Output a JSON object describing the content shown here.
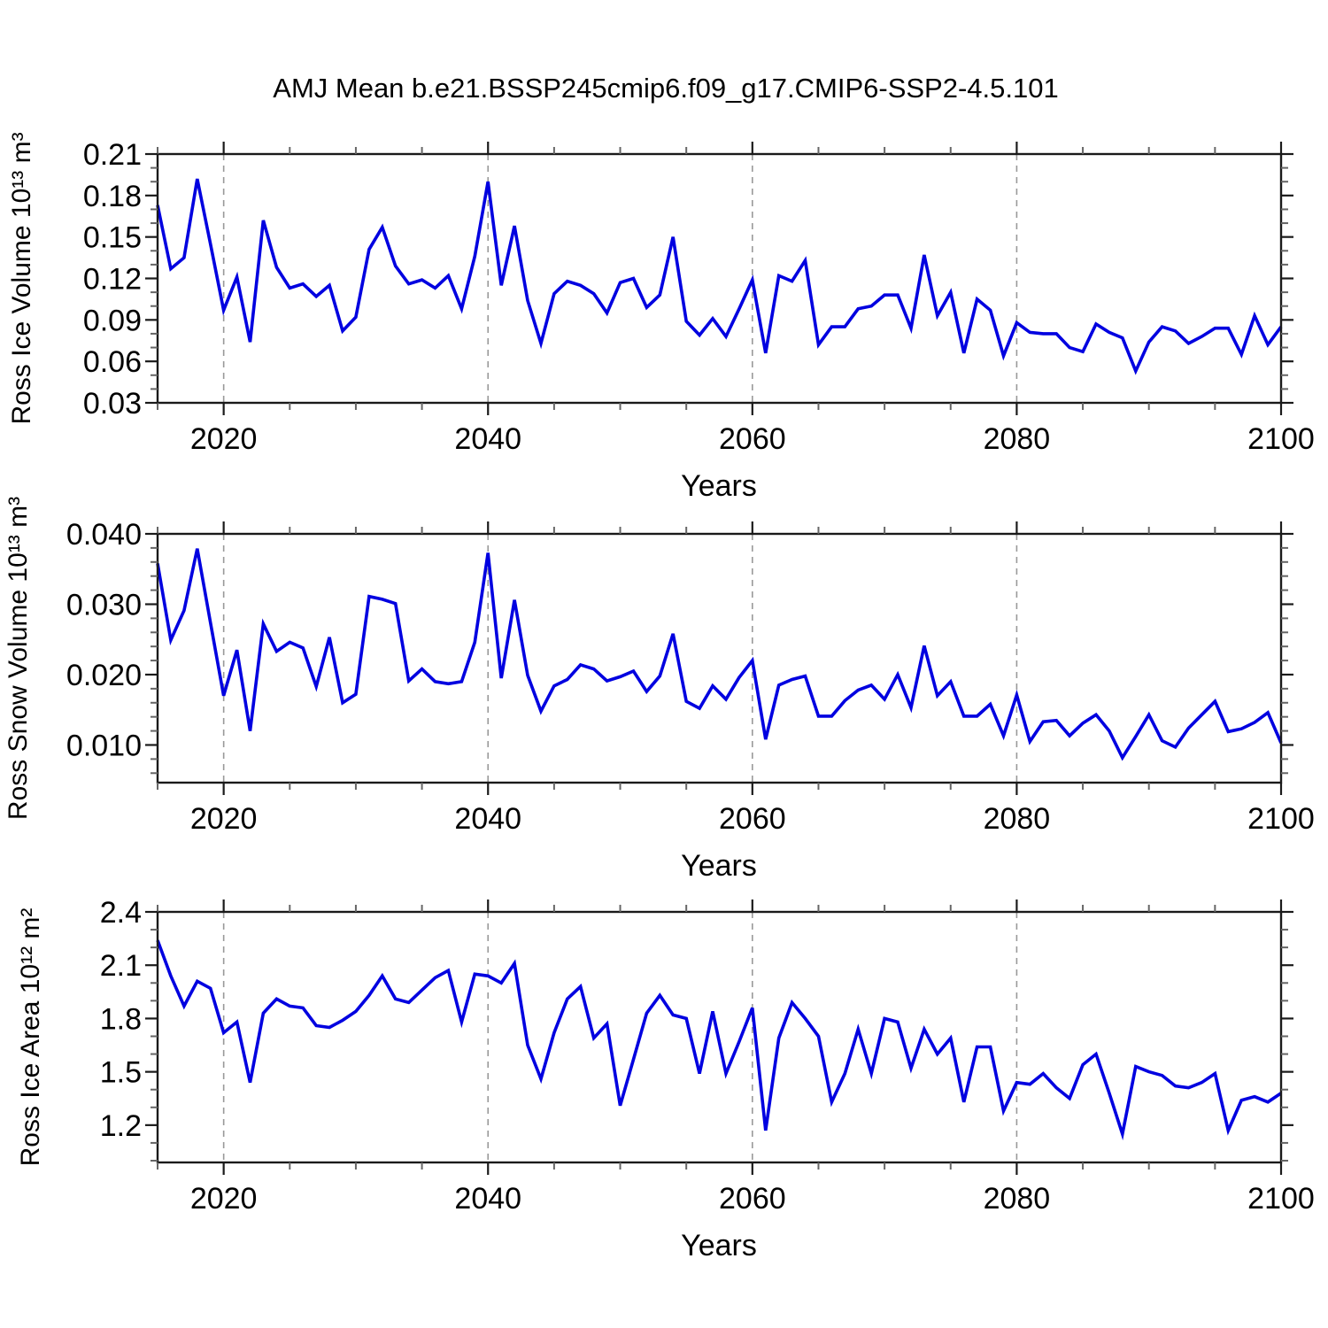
{
  "title": "AMJ Mean b.e21.BSSP245cmip6.f09_g17.CMIP6-SSP2-4.5.101",
  "style": {
    "line_color": "#0000e0",
    "frame_color": "#1a1a1a",
    "minor_tick_color": "#666666",
    "dash_color": "#999999",
    "background": "#ffffff",
    "text_color": "#000000"
  },
  "x_axis": {
    "label": "Years",
    "start_year": 2015,
    "end_year": 2100,
    "major_ticks": [
      2020,
      2040,
      2060,
      2080,
      2100
    ],
    "minor_step": 5,
    "dashed_gridlines": [
      2020,
      2040,
      2060,
      2080
    ]
  },
  "chart_data": [
    {
      "type": "line",
      "ylabel": "Ross Ice Volume 10¹³ m³",
      "ylim": [
        0.03,
        0.21
      ],
      "y_tick_values": [
        0.21,
        0.18,
        0.15,
        0.12,
        0.09,
        0.06,
        0.03
      ],
      "y_tick_labels": [
        "0.21",
        "0.18",
        "0.15",
        "0.12",
        "0.09",
        "0.06",
        "0.03"
      ],
      "y_minor_step": 0.01,
      "x_start": 2015,
      "x_step": 1,
      "values": [
        0.173,
        0.127,
        0.135,
        0.192,
        0.145,
        0.097,
        0.121,
        0.074,
        0.162,
        0.128,
        0.113,
        0.116,
        0.107,
        0.115,
        0.082,
        0.092,
        0.141,
        0.157,
        0.129,
        0.116,
        0.119,
        0.113,
        0.122,
        0.098,
        0.136,
        0.19,
        0.115,
        0.158,
        0.104,
        0.073,
        0.109,
        0.118,
        0.115,
        0.109,
        0.095,
        0.117,
        0.12,
        0.099,
        0.108,
        0.15,
        0.089,
        0.079,
        0.091,
        0.078,
        0.098,
        0.119,
        0.066,
        0.122,
        0.118,
        0.133,
        0.072,
        0.085,
        0.085,
        0.098,
        0.1,
        0.108,
        0.108,
        0.084,
        0.137,
        0.093,
        0.11,
        0.066,
        0.105,
        0.097,
        0.064,
        0.088,
        0.081,
        0.08,
        0.08,
        0.07,
        0.067,
        0.087,
        0.081,
        0.077,
        0.053,
        0.074,
        0.085,
        0.082,
        0.073,
        0.078,
        0.084,
        0.084,
        0.065,
        0.093,
        0.072,
        0.085
      ]
    },
    {
      "type": "line",
      "ylabel": "Ross Snow Volume 10¹³ m³",
      "ylim": [
        0.00465,
        0.04
      ],
      "y_tick_values": [
        0.04,
        0.03,
        0.02,
        0.01
      ],
      "y_tick_labels": [
        "0.040",
        "0.030",
        "0.020",
        "0.010"
      ],
      "y_minor_step": 0.002,
      "x_start": 2015,
      "x_step": 1,
      "values": [
        0.0358,
        0.0249,
        0.0291,
        0.0379,
        0.0274,
        0.017,
        0.0235,
        0.012,
        0.0272,
        0.0233,
        0.0246,
        0.0238,
        0.0183,
        0.0253,
        0.016,
        0.0172,
        0.0311,
        0.0307,
        0.0301,
        0.0191,
        0.0208,
        0.019,
        0.0187,
        0.019,
        0.0246,
        0.0373,
        0.0195,
        0.0306,
        0.0199,
        0.0148,
        0.0184,
        0.0193,
        0.0214,
        0.0208,
        0.0191,
        0.0197,
        0.0205,
        0.0176,
        0.0198,
        0.0258,
        0.0162,
        0.0152,
        0.0184,
        0.0165,
        0.0196,
        0.022,
        0.0108,
        0.0185,
        0.0193,
        0.0198,
        0.0141,
        0.0141,
        0.0163,
        0.0178,
        0.0185,
        0.0165,
        0.02,
        0.0153,
        0.0241,
        0.017,
        0.019,
        0.0141,
        0.0141,
        0.0158,
        0.0113,
        0.0171,
        0.0105,
        0.0133,
        0.0135,
        0.0113,
        0.0131,
        0.0143,
        0.012,
        0.0082,
        0.0112,
        0.0143,
        0.0106,
        0.0097,
        0.0124,
        0.0143,
        0.0162,
        0.0119,
        0.0123,
        0.0132,
        0.0146,
        0.0103
      ]
    },
    {
      "type": "line",
      "ylabel": "Ross Ice Area 10¹² m²",
      "ylim": [
        0.99,
        2.4
      ],
      "y_tick_values": [
        2.4,
        2.1,
        1.8,
        1.5,
        1.2
      ],
      "y_tick_labels": [
        "2.4",
        "2.1",
        "1.8",
        "1.5",
        "1.2"
      ],
      "y_minor_step": 0.1,
      "x_start": 2015,
      "x_step": 1,
      "values": [
        2.24,
        2.04,
        1.87,
        2.01,
        1.97,
        1.72,
        1.78,
        1.44,
        1.83,
        1.91,
        1.87,
        1.86,
        1.76,
        1.75,
        1.79,
        1.84,
        1.93,
        2.04,
        1.91,
        1.89,
        1.96,
        2.03,
        2.07,
        1.78,
        2.05,
        2.04,
        2.0,
        2.11,
        1.65,
        1.46,
        1.72,
        1.91,
        1.98,
        1.69,
        1.77,
        1.31,
        1.57,
        1.83,
        1.93,
        1.82,
        1.8,
        1.49,
        1.84,
        1.49,
        1.67,
        1.86,
        1.17,
        1.69,
        1.89,
        1.8,
        1.7,
        1.33,
        1.49,
        1.74,
        1.49,
        1.8,
        1.78,
        1.52,
        1.74,
        1.6,
        1.69,
        1.33,
        1.64,
        1.64,
        1.28,
        1.44,
        1.43,
        1.49,
        1.41,
        1.35,
        1.54,
        1.6,
        1.38,
        1.15,
        1.53,
        1.5,
        1.48,
        1.42,
        1.41,
        1.44,
        1.49,
        1.17,
        1.34,
        1.36,
        1.33,
        1.38
      ]
    }
  ]
}
